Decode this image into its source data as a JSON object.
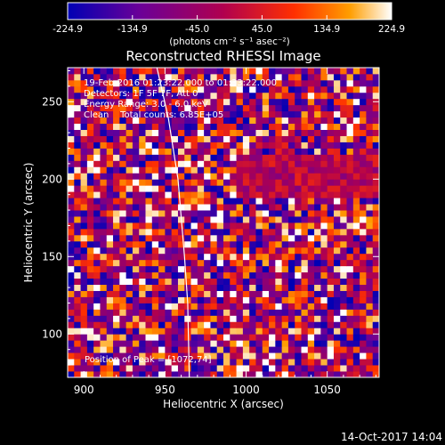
{
  "chart_data": {
    "type": "heatmap",
    "title": "Reconstructed RHESSI Image",
    "xlabel": "Heliocentric X (arcsec)",
    "ylabel": "Heliocentric Y (arcsec)",
    "xlim": [
      890,
      1082
    ],
    "ylim": [
      72,
      272
    ],
    "xticks": [
      900,
      950,
      1000,
      1050
    ],
    "yticks": [
      100,
      150,
      200,
      250
    ],
    "pixel_size_arcsec": 4,
    "colorbar": {
      "min": -224.9,
      "max": 224.9,
      "ticks": [
        "-224.9",
        "-134.9",
        "-45.0",
        "45.0",
        "134.9",
        "224.9"
      ],
      "unit_label": "(photons cm⁻² s⁻¹ asec⁻²)",
      "colors": [
        "#0000b4",
        "#6a0098",
        "#b0004f",
        "#ff3000",
        "#ff9d00",
        "#ffffff"
      ]
    },
    "annotations": [
      "19-Feb-2016 01:23:22.000 to 01:33:22.000",
      "Detectors: 1F 5F 7F, Att 0",
      "Energy Range: 3.0 - 6.0 keV",
      "Clean    Total counts: 6.85E+05"
    ],
    "peak": {
      "label": "Position of Peak = [1072,74]",
      "x": 1072,
      "y": 74
    },
    "limb_curve": [
      [
        945,
        272
      ],
      [
        952,
        240
      ],
      [
        958,
        200
      ],
      [
        962,
        150
      ],
      [
        964,
        120
      ],
      [
        965,
        72
      ]
    ]
  },
  "footer": {
    "timestamp": "14-Oct-2017 14:04"
  }
}
